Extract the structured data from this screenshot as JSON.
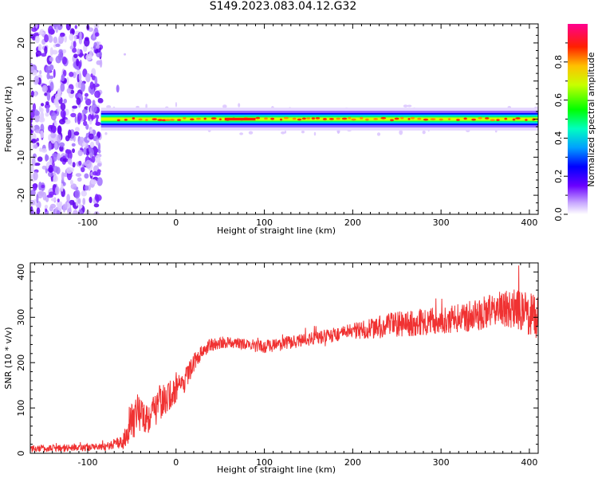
{
  "title": "S149.2023.083.04.12.G32",
  "chart_data": [
    {
      "type": "heatmap",
      "xlabel": "Height of straight line (km)",
      "ylabel": "Frequency (Hz)",
      "xlim": [
        -165,
        410
      ],
      "ylim": [
        -25,
        25
      ],
      "xticks": [
        -100,
        0,
        100,
        200,
        300,
        400
      ],
      "yticks": [
        -20,
        -10,
        0,
        10,
        20
      ],
      "colorbar": {
        "label": "Normalized spectral amplitude",
        "ticks": [
          0.0,
          0.2,
          0.4,
          0.6,
          0.8
        ],
        "range": [
          0,
          1
        ]
      },
      "signal_band": {
        "x_start": -85,
        "x_end": 410,
        "center_frequency": 0,
        "half_width": 2
      },
      "noise_region": {
        "x_start": -165,
        "x_end": -85
      }
    },
    {
      "type": "line",
      "xlabel": "Height of straight line (km)",
      "ylabel": "SNR (10 * v/v)",
      "xlim": [
        -165,
        410
      ],
      "ylim": [
        0,
        420
      ],
      "xticks": [
        -100,
        0,
        100,
        200,
        300,
        400
      ],
      "yticks": [
        0,
        100,
        200,
        300,
        400
      ],
      "color": "#f03232",
      "series": [
        {
          "x": [
            -165,
            -120,
            -80,
            -60,
            -50,
            -40,
            -30,
            -20,
            -10,
            0,
            10,
            20,
            30,
            40,
            60,
            80,
            100,
            130,
            160,
            190,
            220,
            250,
            280,
            310,
            340,
            370,
            390,
            410
          ],
          "values": [
            10,
            12,
            14,
            25,
            80,
            90,
            80,
            110,
            120,
            140,
            160,
            200,
            225,
            240,
            245,
            240,
            235,
            245,
            255,
            265,
            275,
            285,
            290,
            295,
            305,
            320,
            315,
            300
          ],
          "noise": [
            8,
            8,
            8,
            15,
            50,
            40,
            40,
            40,
            35,
            30,
            25,
            20,
            15,
            15,
            12,
            12,
            15,
            15,
            15,
            18,
            22,
            30,
            30,
            30,
            35,
            40,
            50,
            50
          ]
        }
      ]
    }
  ]
}
